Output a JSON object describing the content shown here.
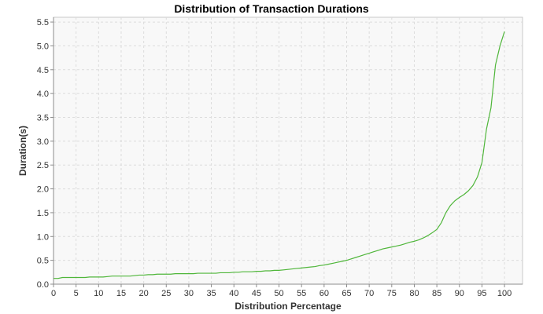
{
  "chart_data": {
    "type": "line",
    "title": "Distribution of Transaction Durations",
    "xlabel": "Distribution Percentage",
    "ylabel": "Duration(s)",
    "xlim": [
      0,
      104
    ],
    "ylim": [
      0,
      5.6
    ],
    "x_ticks": [
      0,
      5,
      10,
      15,
      20,
      25,
      30,
      35,
      40,
      45,
      50,
      55,
      60,
      65,
      70,
      75,
      80,
      85,
      90,
      95,
      100
    ],
    "y_ticks": [
      0.0,
      0.5,
      1.0,
      1.5,
      2.0,
      2.5,
      3.0,
      3.5,
      4.0,
      4.5,
      5.0,
      5.5
    ],
    "grid": true,
    "legend": "none",
    "series": [
      {
        "color": "#4fb63a",
        "x": [
          0,
          1,
          2,
          3,
          4,
          5,
          6,
          7,
          8,
          9,
          10,
          11,
          12,
          13,
          14,
          15,
          16,
          17,
          18,
          19,
          20,
          21,
          22,
          23,
          24,
          25,
          26,
          27,
          28,
          29,
          30,
          31,
          32,
          33,
          34,
          35,
          36,
          37,
          38,
          39,
          40,
          41,
          42,
          43,
          44,
          45,
          46,
          47,
          48,
          49,
          50,
          51,
          52,
          53,
          54,
          55,
          56,
          57,
          58,
          59,
          60,
          61,
          62,
          63,
          64,
          65,
          66,
          67,
          68,
          69,
          70,
          71,
          72,
          73,
          74,
          75,
          76,
          77,
          78,
          79,
          80,
          81,
          82,
          83,
          84,
          85,
          86,
          87,
          88,
          89,
          90,
          91,
          92,
          93,
          94,
          95,
          96,
          97,
          98,
          99,
          100
        ],
        "y": [
          0.12,
          0.12,
          0.14,
          0.14,
          0.14,
          0.14,
          0.14,
          0.14,
          0.15,
          0.15,
          0.15,
          0.15,
          0.16,
          0.17,
          0.17,
          0.17,
          0.17,
          0.17,
          0.18,
          0.19,
          0.19,
          0.2,
          0.2,
          0.21,
          0.21,
          0.21,
          0.21,
          0.22,
          0.22,
          0.22,
          0.22,
          0.22,
          0.23,
          0.23,
          0.23,
          0.23,
          0.23,
          0.24,
          0.24,
          0.24,
          0.25,
          0.25,
          0.26,
          0.26,
          0.26,
          0.27,
          0.27,
          0.28,
          0.28,
          0.29,
          0.29,
          0.3,
          0.31,
          0.32,
          0.33,
          0.34,
          0.35,
          0.36,
          0.37,
          0.39,
          0.4,
          0.42,
          0.44,
          0.46,
          0.48,
          0.5,
          0.53,
          0.56,
          0.59,
          0.62,
          0.65,
          0.68,
          0.71,
          0.74,
          0.76,
          0.78,
          0.8,
          0.82,
          0.85,
          0.88,
          0.9,
          0.93,
          0.97,
          1.02,
          1.08,
          1.15,
          1.29,
          1.5,
          1.65,
          1.75,
          1.82,
          1.88,
          1.96,
          2.07,
          2.25,
          2.55,
          3.25,
          3.7,
          4.6,
          5.0,
          5.3
        ]
      }
    ]
  }
}
